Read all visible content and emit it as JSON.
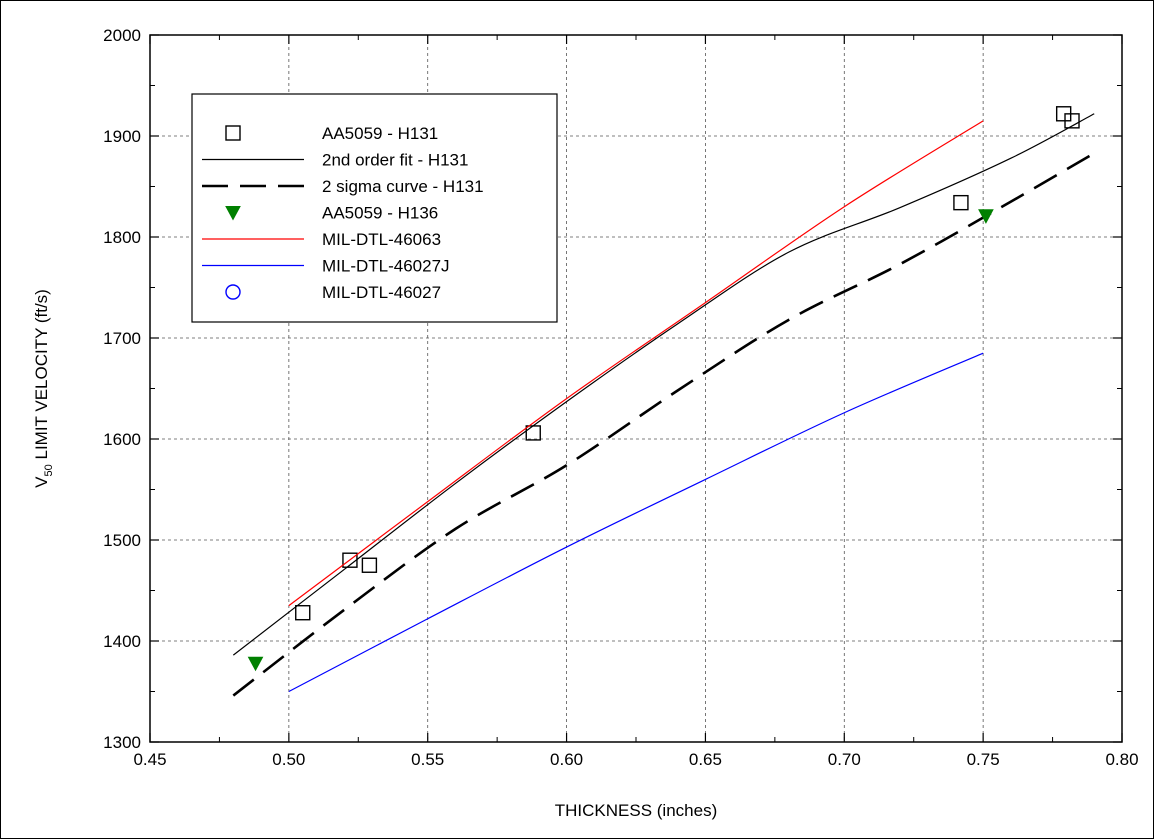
{
  "chart_data": {
    "type": "scatter",
    "title": "",
    "xlabel": "THICKNESS  (inches)",
    "ylabel_main": "V",
    "ylabel_sub": "50",
    "ylabel_rest": " LIMIT VELOCITY  (ft/s)",
    "xlim": [
      0.45,
      0.8
    ],
    "ylim": [
      1300,
      2000
    ],
    "xticks": [
      0.45,
      0.5,
      0.55,
      0.6,
      0.65,
      0.7,
      0.75,
      0.8
    ],
    "xtick_labels": [
      "0.45",
      "0.50",
      "0.55",
      "0.60",
      "0.65",
      "0.70",
      "0.75",
      "0.80"
    ],
    "yticks": [
      1300,
      1400,
      1500,
      1600,
      1700,
      1800,
      1900,
      2000
    ],
    "ytick_labels": [
      "1300",
      "1400",
      "1500",
      "1600",
      "1700",
      "1800",
      "1900",
      "2000"
    ],
    "grid": true,
    "legend_position": "top-left",
    "series": [
      {
        "name": "AA5059 - H131",
        "kind": "marker",
        "marker": "square-open",
        "color": "#000000",
        "x": [
          0.505,
          0.522,
          0.529,
          0.588,
          0.742,
          0.779,
          0.782
        ],
        "y": [
          1428,
          1480,
          1475,
          1606,
          1834,
          1922,
          1915
        ]
      },
      {
        "name": "2nd order fit - H131",
        "kind": "line",
        "style": "solid",
        "color": "#000000",
        "x": [
          0.48,
          0.52,
          0.56,
          0.6,
          0.64,
          0.68,
          0.72,
          0.76,
          0.79
        ],
        "y": [
          1386,
          1471,
          1556,
          1637,
          1714,
          1785,
          1829,
          1878,
          1922
        ]
      },
      {
        "name": "2 sigma curve - H131",
        "kind": "line",
        "style": "dashed",
        "color": "#000000",
        "x": [
          0.48,
          0.52,
          0.56,
          0.6,
          0.64,
          0.68,
          0.72,
          0.76,
          0.79
        ],
        "y": [
          1346,
          1431,
          1511,
          1574,
          1648,
          1718,
          1773,
          1835,
          1883
        ]
      },
      {
        "name": "AA5059 - H136",
        "kind": "marker",
        "marker": "triangle-down-filled",
        "color": "#008000",
        "x": [
          0.488,
          0.751
        ],
        "y": [
          1378,
          1821
        ]
      },
      {
        "name": "MIL-DTL-46063",
        "kind": "line",
        "style": "solid",
        "color": "#ff0000",
        "x": [
          0.5,
          0.55,
          0.6,
          0.65,
          0.7,
          0.75
        ],
        "y": [
          1435,
          1538,
          1640,
          1735,
          1830,
          1915
        ]
      },
      {
        "name": "MIL-DTL-46027J",
        "kind": "line",
        "style": "solid",
        "color": "#0000ff",
        "x": [
          0.5,
          0.55,
          0.6,
          0.65,
          0.7,
          0.75
        ],
        "y": [
          1350,
          1422,
          1493,
          1560,
          1626,
          1685
        ]
      },
      {
        "name": "MIL-DTL-46027",
        "kind": "marker",
        "marker": "circle-open",
        "color": "#0000ff",
        "x": [],
        "y": []
      }
    ]
  }
}
